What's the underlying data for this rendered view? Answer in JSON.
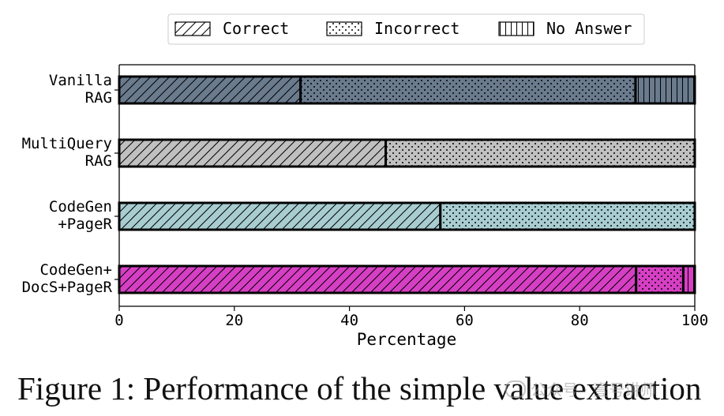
{
  "chart_data": {
    "type": "bar",
    "orientation": "horizontal",
    "stacked": true,
    "categories": [
      "Vanilla\nRAG",
      "MultiQuery\nRAG",
      "CodeGen\n+PageR",
      "CodeGen+\nDocS+PageR"
    ],
    "category_colors": [
      "#6b7b8e",
      "#c0c0c0",
      "#a8cdd1",
      "#d63fc4"
    ],
    "series": [
      {
        "name": "Correct",
        "values": [
          31.5,
          46.3,
          55.8,
          89.8
        ],
        "pattern": "diagonal-hatch"
      },
      {
        "name": "Incorrect",
        "values": [
          58.2,
          53.7,
          44.2,
          8.2
        ],
        "pattern": "dots"
      },
      {
        "name": "No Answer",
        "values": [
          10.3,
          0,
          0,
          2.0
        ],
        "pattern": "vertical-lines"
      }
    ],
    "xlabel": "Percentage",
    "ylabel": "",
    "xlim": [
      0,
      100
    ],
    "xticks": [
      0,
      20,
      40,
      60,
      80,
      100
    ],
    "grid": false,
    "legend_position": "top-center"
  },
  "caption": "Figure 1: Performance of the simple value extraction",
  "watermark": "公众号 · 壹号讲师"
}
